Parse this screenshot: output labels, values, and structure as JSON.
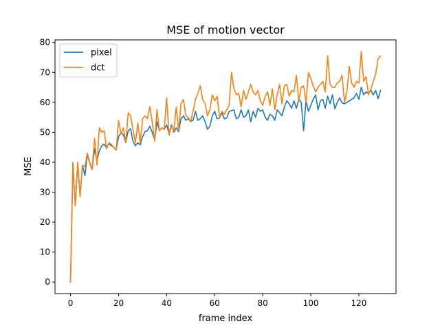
{
  "chart_data": {
    "type": "line",
    "title": "MSE of motion vector",
    "xlabel": "frame index",
    "ylabel": "MSE",
    "xlim": [
      -6.45,
      135.45
    ],
    "ylim": [
      -3.85,
      80.85
    ],
    "xticks": [
      0,
      20,
      40,
      60,
      80,
      100,
      120
    ],
    "yticks": [
      0,
      10,
      20,
      30,
      40,
      50,
      60,
      70,
      80
    ],
    "grid": false,
    "legend": {
      "position": "top-left"
    },
    "series": [
      {
        "name": "pixel",
        "color": "#1f77b4",
        "values": [
          0.0,
          39.5,
          25.5,
          39.5,
          28.8,
          39.0,
          35.5,
          42.5,
          39.8,
          37.5,
          44.5,
          40.5,
          43.8,
          45.5,
          46.0,
          44.8,
          46.2,
          45.5,
          45.0,
          44.2,
          48.5,
          49.8,
          49.2,
          46.5,
          50.5,
          51.2,
          47.0,
          45.5,
          46.5,
          45.8,
          48.5,
          50.2,
          50.5,
          52.0,
          50.0,
          47.5,
          53.5,
          50.5,
          51.5,
          51.0,
          52.5,
          49.5,
          52.5,
          50.0,
          51.5,
          50.2,
          54.5,
          55.5,
          54.0,
          54.5,
          53.5,
          54.0,
          57.0,
          54.0,
          54.5,
          55.5,
          53.5,
          51.0,
          52.0,
          55.5,
          57.0,
          54.5,
          54.8,
          56.5,
          54.5,
          54.8,
          57.0,
          57.2,
          57.5,
          54.5,
          55.0,
          57.5,
          55.0,
          55.5,
          57.5,
          53.5,
          57.0,
          55.0,
          58.0,
          57.0,
          57.5,
          55.0,
          54.0,
          56.0,
          55.5,
          54.0,
          57.5,
          56.5,
          55.5,
          58.5,
          60.5,
          59.5,
          58.0,
          60.5,
          58.0,
          61.0,
          60.0,
          50.5,
          60.5,
          57.0,
          59.0,
          61.0,
          62.5,
          57.5,
          60.5,
          61.0,
          58.0,
          62.0,
          59.5,
          62.5,
          57.8,
          60.0,
          61.5,
          59.8,
          59.5,
          60.0,
          60.5,
          61.0,
          61.5,
          63.0,
          61.0,
          65.0,
          62.5,
          63.5,
          63.0,
          64.0,
          62.5,
          64.0,
          61.2,
          64.0
        ]
      },
      {
        "name": "dct",
        "color": "#ff7f0e",
        "values": [
          0.0,
          40.0,
          25.5,
          40.0,
          28.5,
          39.0,
          38.5,
          43.0,
          40.0,
          37.5,
          48.0,
          39.0,
          51.5,
          50.0,
          50.5,
          44.5,
          46.5,
          46.0,
          45.0,
          44.0,
          54.0,
          49.5,
          51.5,
          46.5,
          56.5,
          55.5,
          51.0,
          46.5,
          53.0,
          46.5,
          54.5,
          55.5,
          54.5,
          58.5,
          53.5,
          47.0,
          57.5,
          50.5,
          51.5,
          51.0,
          61.5,
          49.0,
          52.0,
          50.5,
          58.5,
          50.5,
          59.5,
          61.0,
          55.5,
          55.0,
          53.5,
          57.0,
          61.0,
          63.0,
          65.5,
          61.0,
          59.5,
          55.5,
          57.5,
          62.5,
          60.5,
          62.0,
          55.0,
          57.0,
          56.0,
          57.5,
          59.0,
          70.0,
          64.5,
          62.5,
          63.0,
          58.5,
          64.0,
          61.0,
          63.5,
          66.0,
          63.5,
          62.5,
          64.0,
          60.5,
          59.0,
          62.0,
          63.5,
          59.0,
          64.5,
          57.5,
          62.5,
          66.0,
          59.5,
          65.5,
          66.0,
          62.0,
          64.0,
          63.5,
          69.0,
          60.5,
          65.0,
          65.5,
          60.0,
          70.0,
          68.0,
          65.5,
          63.5,
          65.0,
          66.0,
          67.0,
          63.5,
          75.5,
          66.0,
          65.0,
          65.0,
          66.5,
          67.0,
          69.0,
          60.0,
          63.5,
          72.0,
          66.5,
          65.0,
          67.0,
          66.5,
          77.0,
          67.0,
          68.5,
          62.5,
          64.5,
          67.0,
          69.5,
          74.5,
          75.5
        ]
      }
    ]
  }
}
